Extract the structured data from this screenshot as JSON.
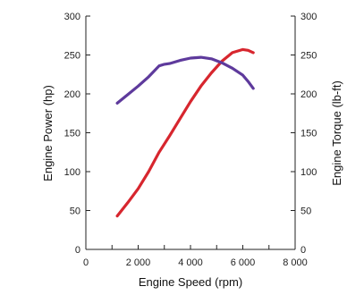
{
  "chart_data": {
    "type": "line",
    "xlabel": "Engine Speed (rpm)",
    "ylabel_left": "Engine Power (hp)",
    "ylabel_right": "Engine Torque (lb-ft)",
    "xlim": [
      0,
      8000
    ],
    "ylim_left": [
      0,
      300
    ],
    "ylim_right": [
      0,
      300
    ],
    "x_ticks": [
      "0",
      "2 000",
      "4 000",
      "6 000",
      "8 000"
    ],
    "x_tick_values": [
      0,
      2000,
      4000,
      6000,
      8000
    ],
    "y_ticks_left": [
      "0",
      "50",
      "100",
      "150",
      "200",
      "250",
      "300"
    ],
    "y_ticks_right": [
      "0",
      "50",
      "100",
      "150",
      "200",
      "250",
      "300"
    ],
    "y_tick_values": [
      0,
      50,
      100,
      150,
      200,
      250,
      300
    ],
    "tick_colors": {
      "left": "#cc1f2d",
      "right": "#6a3c9c",
      "x": "#222222"
    },
    "grid": false,
    "series": [
      {
        "axis": "left",
        "color": "#d7262e",
        "x": [
          1200,
          1600,
          2000,
          2400,
          2800,
          3200,
          3600,
          4000,
          4400,
          4800,
          5200,
          5600,
          6000,
          6200,
          6400
        ],
        "y": [
          43,
          60,
          78,
          100,
          125,
          146,
          168,
          190,
          210,
          227,
          242,
          253,
          257,
          256,
          253
        ]
      },
      {
        "axis": "right",
        "color": "#5e3a9c",
        "x": [
          1200,
          1600,
          2000,
          2400,
          2800,
          3000,
          3200,
          3600,
          4000,
          4400,
          4800,
          5200,
          5600,
          6000,
          6200,
          6400
        ],
        "y": [
          188,
          199,
          210,
          222,
          236,
          238,
          239,
          243,
          246,
          247,
          245,
          240,
          233,
          224,
          216,
          207
        ]
      }
    ]
  }
}
